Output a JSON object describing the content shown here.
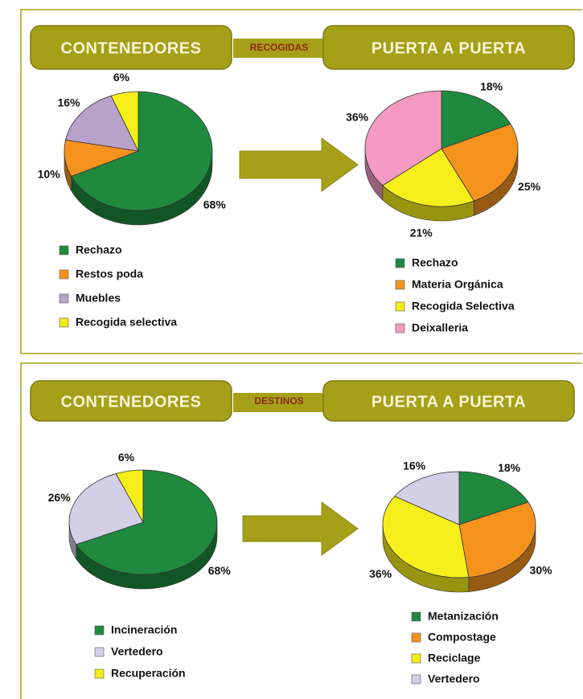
{
  "banners": [
    {
      "left": "CONTENEDORES",
      "middle": "RECOGIDAS",
      "right": "PUERTA A PUERTA"
    },
    {
      "left": "CONTENEDORES",
      "middle": "DESTINOS",
      "right": "PUERTA A PUERTA"
    }
  ],
  "chart_data": [
    {
      "type": "pie",
      "categories": [
        "Rechazo",
        "Restos poda",
        "Muebles",
        "Recogida selectiva"
      ],
      "values": [
        68,
        10,
        16,
        6
      ],
      "value_labels": [
        "68%",
        "10%",
        "16%",
        "6%"
      ],
      "colors": [
        "#1f8a3e",
        "#f5921e",
        "#b8a2cc",
        "#f5ee1a"
      ]
    },
    {
      "type": "pie",
      "categories": [
        "Rechazo",
        "Materia Orgánica",
        "Recogida Selectiva",
        "Deixalleria"
      ],
      "values": [
        18,
        25,
        21,
        36
      ],
      "value_labels": [
        "18%",
        "25%",
        "21%",
        "36%"
      ],
      "colors": [
        "#1f8a3e",
        "#f5921e",
        "#f5ee1a",
        "#f49ac2"
      ]
    },
    {
      "type": "pie",
      "categories": [
        "Incineración",
        "Vertedero",
        "Recuperación"
      ],
      "values": [
        68,
        26,
        6
      ],
      "value_labels": [
        "68%",
        "26%",
        "6%"
      ],
      "colors": [
        "#1f8a3e",
        "#d2cfe7",
        "#f5ee1a"
      ]
    },
    {
      "type": "pie",
      "categories": [
        "Metanización",
        "Compostage",
        "Reciclage",
        "Vertedero"
      ],
      "values": [
        18,
        30,
        36,
        16
      ],
      "value_labels": [
        "18%",
        "30%",
        "36%",
        "16%"
      ],
      "colors": [
        "#1f8a3e",
        "#f5921e",
        "#f5ee1a",
        "#d2cfe7"
      ]
    }
  ]
}
